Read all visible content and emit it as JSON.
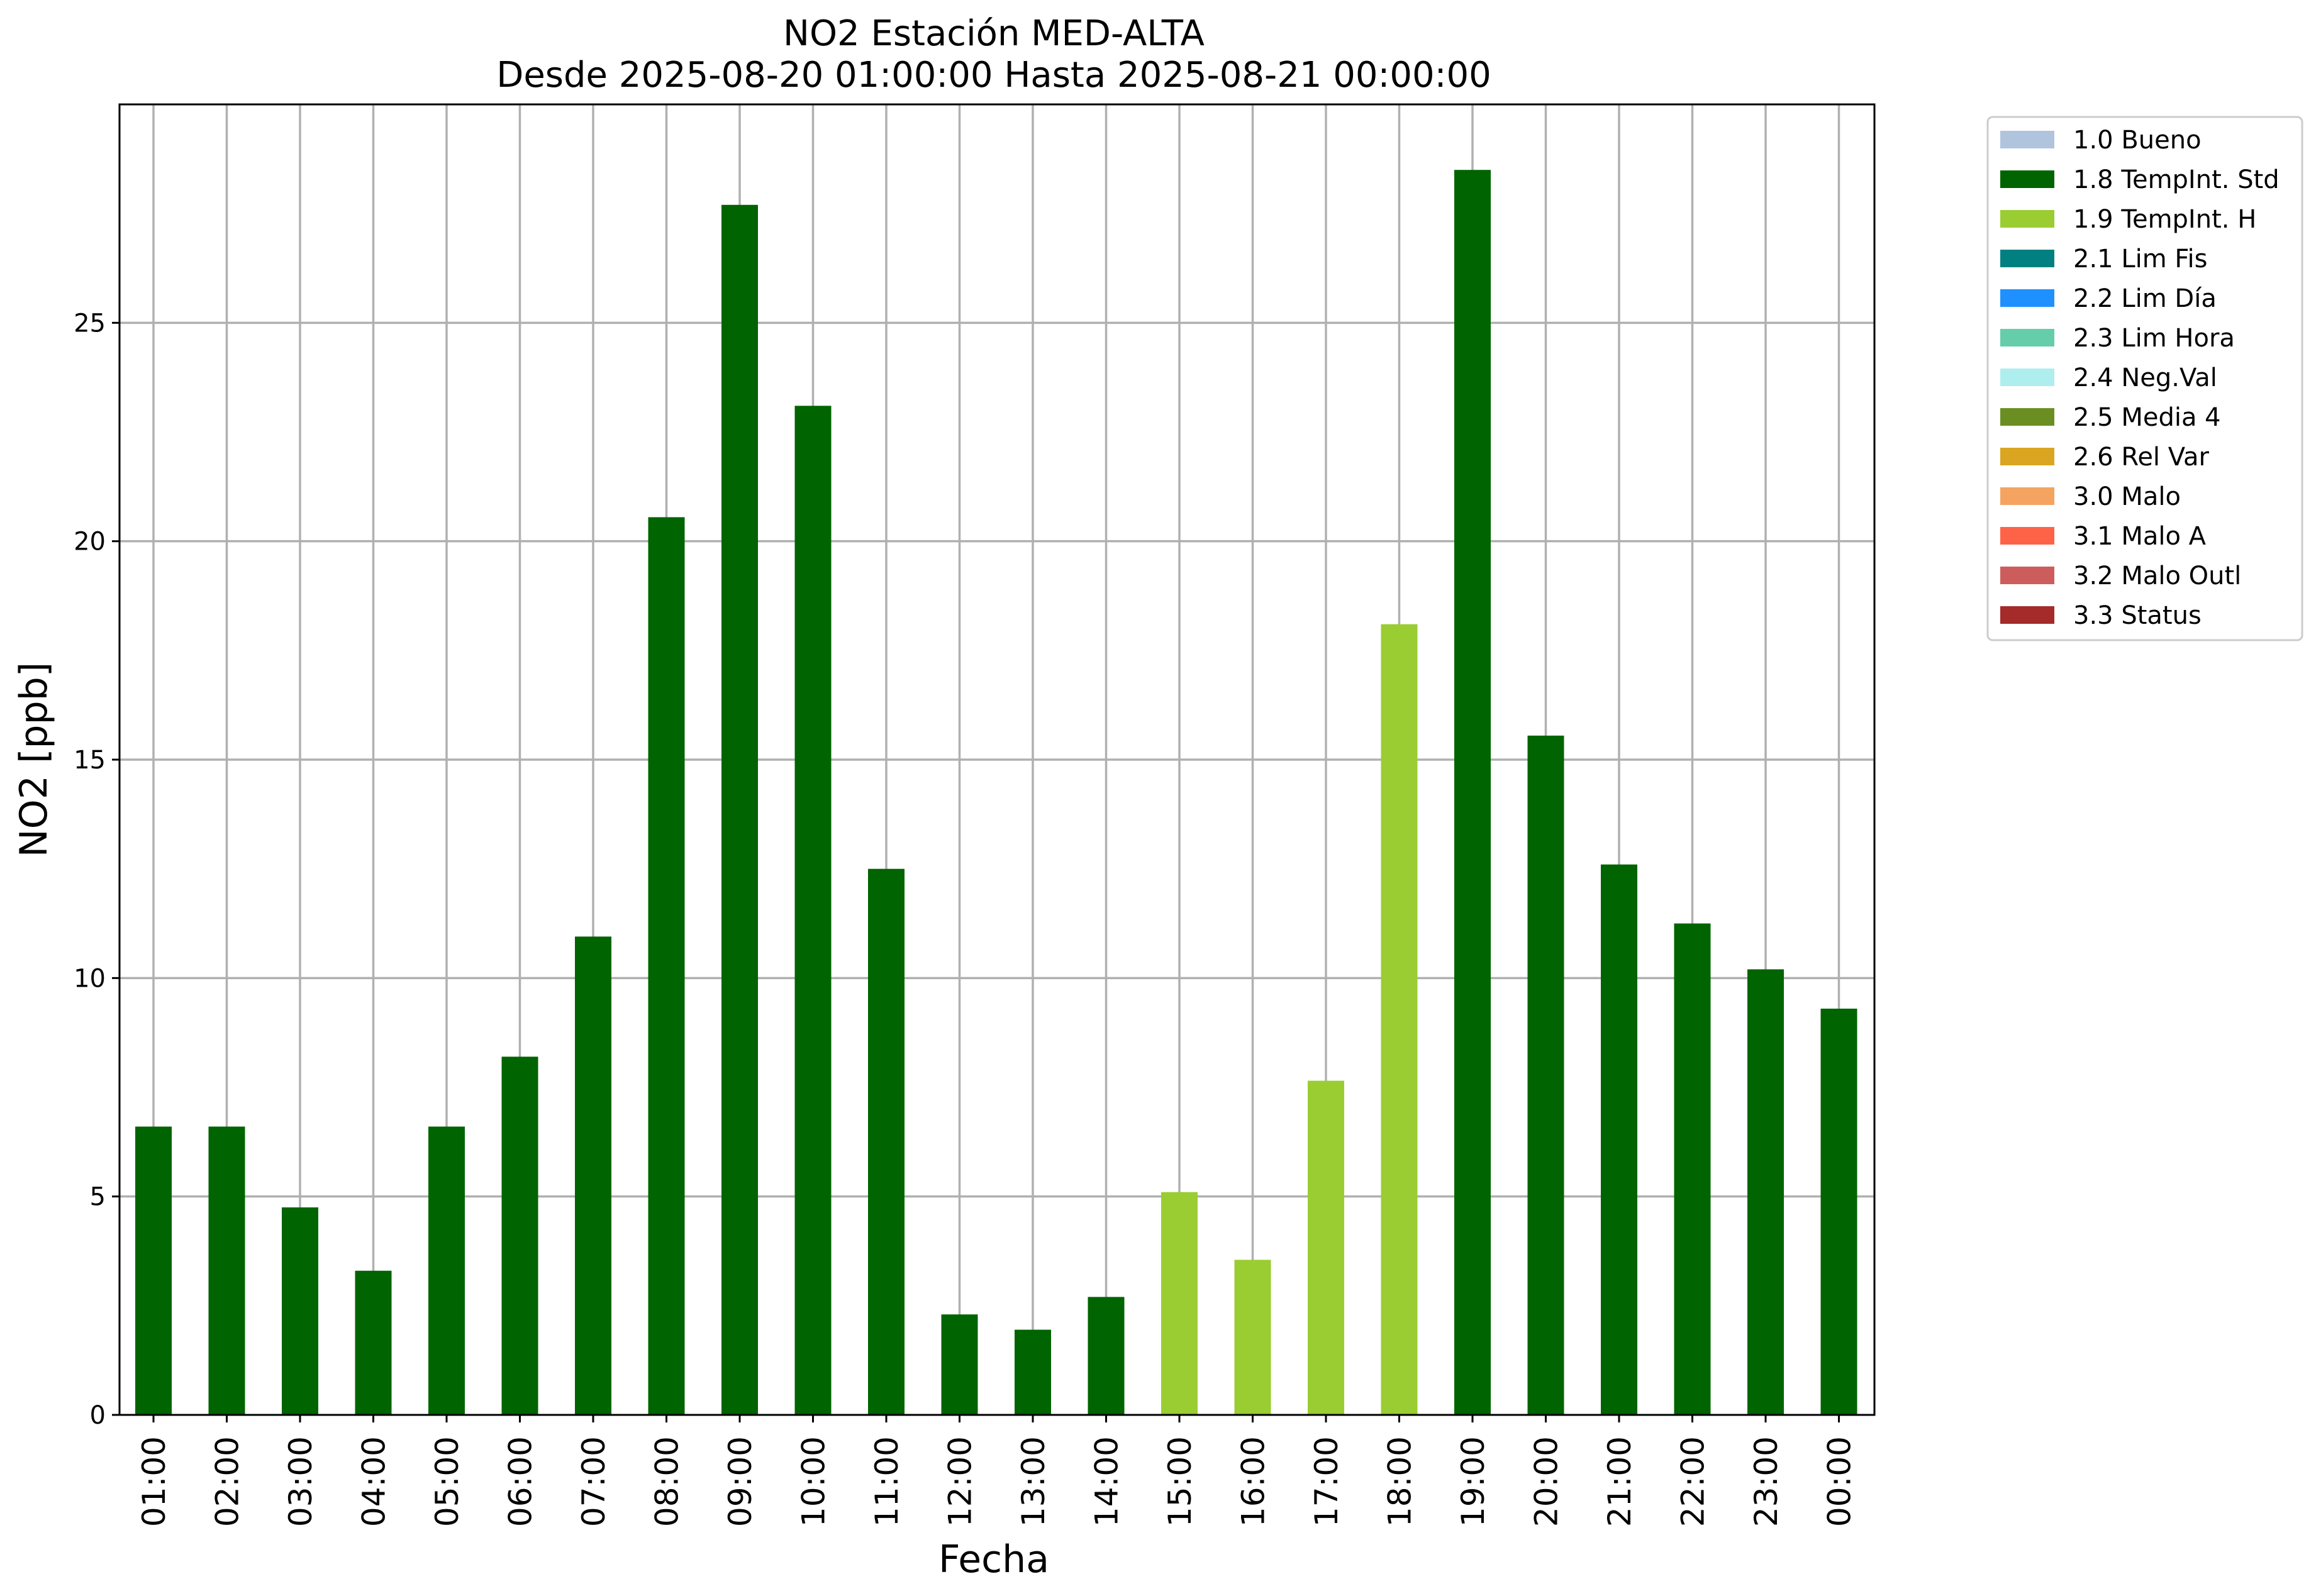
{
  "chart_data": {
    "type": "bar",
    "title": "NO2 Estación MED-ALTA",
    "subtitle": "Desde 2025-08-20 01:00:00 Hasta 2025-08-21 00:00:00",
    "xlabel": "Fecha",
    "ylabel": "NO2 [ppb]",
    "ylim": [
      0,
      30
    ],
    "yticks": [
      0,
      5,
      10,
      15,
      20,
      25
    ],
    "grid": true,
    "legend_position": "outside right, top",
    "categories": [
      "01:00",
      "02:00",
      "03:00",
      "04:00",
      "05:00",
      "06:00",
      "07:00",
      "08:00",
      "09:00",
      "10:00",
      "11:00",
      "12:00",
      "13:00",
      "14:00",
      "15:00",
      "16:00",
      "17:00",
      "18:00",
      "19:00",
      "20:00",
      "21:00",
      "22:00",
      "23:00",
      "00:00"
    ],
    "values": [
      6.6,
      6.6,
      4.75,
      3.3,
      6.6,
      8.2,
      10.95,
      20.55,
      27.7,
      23.1,
      12.5,
      2.3,
      1.95,
      2.7,
      5.1,
      3.55,
      7.65,
      18.1,
      28.5,
      15.55,
      12.6,
      11.25,
      10.2,
      9.3
    ],
    "flags": [
      "1.8 TempInt. Std",
      "1.8 TempInt. Std",
      "1.8 TempInt. Std",
      "1.8 TempInt. Std",
      "1.8 TempInt. Std",
      "1.8 TempInt. Std",
      "1.8 TempInt. Std",
      "1.8 TempInt. Std",
      "1.8 TempInt. Std",
      "1.8 TempInt. Std",
      "1.8 TempInt. Std",
      "1.8 TempInt. Std",
      "1.8 TempInt. Std",
      "1.8 TempInt. Std",
      "1.9 TempInt. H",
      "1.9 TempInt. H",
      "1.9 TempInt. H",
      "1.9 TempInt. H",
      "1.8 TempInt. Std",
      "1.8 TempInt. Std",
      "1.8 TempInt. Std",
      "1.8 TempInt. Std",
      "1.8 TempInt. Std",
      "1.8 TempInt. Std"
    ],
    "legend": [
      {
        "label": "1.0 Bueno",
        "color": "#b0c4de"
      },
      {
        "label": "1.8 TempInt. Std",
        "color": "#006400"
      },
      {
        "label": "1.9 TempInt. H",
        "color": "#9acd32"
      },
      {
        "label": "2.1 Lim Fis",
        "color": "#008080"
      },
      {
        "label": "2.2 Lim Día",
        "color": "#1e90ff"
      },
      {
        "label": "2.3 Lim Hora",
        "color": "#66cdaa"
      },
      {
        "label": "2.4 Neg.Val",
        "color": "#afeeee"
      },
      {
        "label": "2.5 Media 4",
        "color": "#6b8e23"
      },
      {
        "label": "2.6 Rel Var",
        "color": "#daa520"
      },
      {
        "label": "3.0 Malo",
        "color": "#f4a460"
      },
      {
        "label": "3.1 Malo A",
        "color": "#ff6347"
      },
      {
        "label": "3.2 Malo Outl",
        "color": "#cd5c5c"
      },
      {
        "label": "3.3 Status",
        "color": "#a52a2a"
      }
    ]
  }
}
